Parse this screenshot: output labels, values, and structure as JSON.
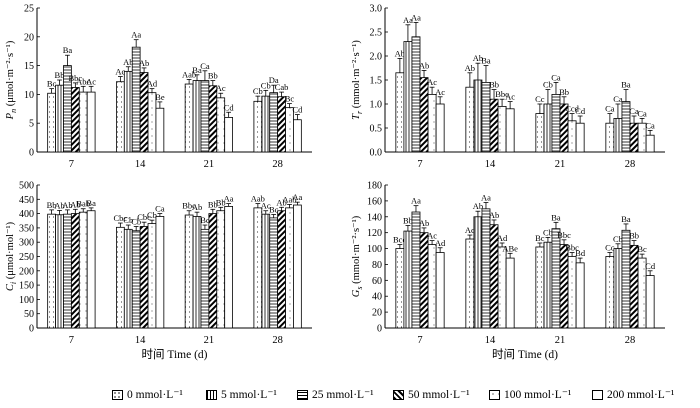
{
  "chart_data": [
    {
      "type": "bar",
      "ylabel": "Pn (μmol·m⁻²·s⁻¹)",
      "ylabel_main": "P",
      "ylabel_sub": "n",
      "ylabel_unit": " (μmol·m⁻²·s⁻¹)",
      "categories": [
        "7",
        "14",
        "21",
        "28"
      ],
      "ylim": [
        0,
        25
      ],
      "yticks": [
        0,
        5,
        10,
        15,
        20,
        25
      ],
      "series": [
        {
          "name": "0 mmol·L⁻¹",
          "values": [
            10.2,
            12.2,
            11.8,
            8.8
          ],
          "errors": [
            0.8,
            0.9,
            0.8,
            0.9
          ],
          "labels": [
            "Bc",
            "Ac",
            "Aab",
            "Cb"
          ]
        },
        {
          "name": "5 mmol·L⁻¹",
          "values": [
            11.6,
            14.0,
            12.4,
            9.7
          ],
          "errors": [
            0.9,
            0.8,
            1.0,
            1.0
          ],
          "labels": [
            "Bb",
            "Ab",
            "Ba",
            "Cb"
          ]
        },
        {
          "name": "25 mmol·L⁻¹",
          "values": [
            15.0,
            18.2,
            12.4,
            10.3
          ],
          "errors": [
            1.8,
            1.3,
            1.7,
            1.3
          ],
          "labels": [
            "Ba",
            "Aa",
            "Ca",
            "Da"
          ]
        },
        {
          "name": "50 mmol·L⁻¹",
          "values": [
            11.2,
            13.8,
            11.5,
            9.6
          ],
          "errors": [
            0.8,
            0.8,
            0.9,
            0.8
          ],
          "labels": [
            "Bbc",
            "Ab",
            "Bb",
            "Cab"
          ]
        },
        {
          "name": "100 mmol·L⁻¹",
          "values": [
            10.4,
            10.3,
            9.4,
            7.7
          ],
          "errors": [
            1.0,
            0.7,
            0.8,
            0.7
          ],
          "labels": [
            "Abc",
            "Ad",
            "Ac",
            "Bc"
          ]
        },
        {
          "name": "200 mmol·L⁻¹",
          "values": [
            10.4,
            7.6,
            6.0,
            5.6
          ],
          "errors": [
            1.0,
            1.1,
            0.9,
            0.9
          ],
          "labels": [
            "Ac",
            "Be",
            "Cd",
            "Cd"
          ]
        }
      ]
    },
    {
      "type": "bar",
      "ylabel": "Tr (mmol·m⁻²·s⁻¹)",
      "ylabel_main": "T",
      "ylabel_sub": "r",
      "ylabel_unit": " (mmol·m⁻²·s⁻¹)",
      "categories": [
        "7",
        "14",
        "21",
        "28"
      ],
      "ylim": [
        0,
        3.0
      ],
      "yticks": [
        0,
        0.5,
        1.0,
        1.5,
        2.0,
        2.5,
        3.0
      ],
      "series": [
        {
          "name": "0 mmol·L⁻¹",
          "values": [
            1.65,
            1.35,
            0.8,
            0.6
          ],
          "errors": [
            0.3,
            0.3,
            0.2,
            0.2
          ],
          "labels": [
            "Ab",
            "Ab",
            "Cc",
            "Ca"
          ]
        },
        {
          "name": "5 mmol·L⁻¹",
          "values": [
            2.3,
            1.5,
            1.0,
            0.7
          ],
          "errors": [
            0.35,
            0.35,
            0.3,
            0.3
          ],
          "labels": [
            "Aa",
            "Ab",
            "Cb",
            "Ca"
          ]
        },
        {
          "name": "25 mmol·L⁻¹",
          "values": [
            2.4,
            1.45,
            1.2,
            1.05
          ],
          "errors": [
            0.3,
            0.35,
            0.25,
            0.25
          ],
          "labels": [
            "Aa",
            "Ba",
            "Ca",
            "Ba"
          ]
        },
        {
          "name": "50 mmol·L⁻¹",
          "values": [
            1.55,
            1.1,
            1.0,
            0.6
          ],
          "errors": [
            0.15,
            0.2,
            0.15,
            0.15
          ],
          "labels": [
            "Ab",
            "Bb",
            "Bb",
            "Ca"
          ]
        },
        {
          "name": "100 mmol·L⁻¹",
          "values": [
            1.2,
            0.95,
            0.65,
            0.6
          ],
          "errors": [
            0.15,
            0.15,
            0.15,
            0.1
          ],
          "labels": [
            "Ac",
            "Bbc",
            "Ccd",
            "Ca"
          ]
        },
        {
          "name": "200 mmol·L⁻¹",
          "values": [
            1.0,
            0.9,
            0.6,
            0.35
          ],
          "errors": [
            0.15,
            0.15,
            0.15,
            0.1
          ],
          "labels": [
            "Ac",
            "Ac",
            "Cd",
            "Ca"
          ]
        }
      ]
    },
    {
      "type": "bar",
      "ylabel": "Ci (μmol·mol⁻¹)",
      "ylabel_main": "C",
      "ylabel_sub": "i",
      "ylabel_unit": " (μmol·mol⁻¹)",
      "xlabel": "时间 Time (d)",
      "categories": [
        "7",
        "14",
        "21",
        "28"
      ],
      "ylim": [
        0,
        500
      ],
      "yticks": [
        0,
        50,
        100,
        150,
        200,
        250,
        300,
        350,
        400,
        450,
        500
      ],
      "series": [
        {
          "name": "0 mmol·L⁻¹",
          "values": [
            398,
            352,
            395,
            420
          ],
          "errors": [
            15,
            15,
            15,
            15
          ],
          "labels": [
            "Bb",
            "Cbc",
            "Bbc",
            "Aab"
          ]
        },
        {
          "name": "5 mmol·L⁻¹",
          "values": [
            396,
            345,
            390,
            398
          ],
          "errors": [
            15,
            15,
            15,
            12
          ],
          "labels": [
            "Ab",
            "Cb",
            "Ab",
            "Ac"
          ]
        },
        {
          "name": "25 mmol·L⁻¹",
          "values": [
            398,
            340,
            345,
            385
          ],
          "errors": [
            15,
            15,
            15,
            12
          ],
          "labels": [
            "Ab",
            "Cb",
            "Bc",
            "Bc"
          ]
        },
        {
          "name": "50 mmol·L⁻¹",
          "values": [
            400,
            355,
            400,
            410
          ],
          "errors": [
            15,
            15,
            15,
            12
          ],
          "labels": [
            "Ab",
            "Cbc",
            "Bb",
            "Ab"
          ]
        },
        {
          "name": "100 mmol·L⁻¹",
          "values": [
            405,
            365,
            410,
            420
          ],
          "errors": [
            12,
            12,
            12,
            12
          ],
          "labels": [
            "Bab",
            "Cb",
            "Bb",
            "Aab"
          ]
        },
        {
          "name": "200 mmol·L⁻¹",
          "values": [
            410,
            390,
            425,
            430
          ],
          "errors": [
            10,
            10,
            10,
            10
          ],
          "labels": [
            "Ba",
            "Ca",
            "Aa",
            "Aa"
          ]
        }
      ]
    },
    {
      "type": "bar",
      "ylabel": "Gs (mmol·m⁻²·s⁻¹)",
      "ylabel_main": "G",
      "ylabel_sub": "s",
      "ylabel_unit": " (mmol·m⁻²·s⁻¹)",
      "xlabel": "时间 Time (d)",
      "categories": [
        "7",
        "14",
        "21",
        "28"
      ],
      "ylim": [
        0,
        180
      ],
      "yticks": [
        0,
        20,
        40,
        60,
        80,
        100,
        120,
        140,
        160,
        180
      ],
      "series": [
        {
          "name": "0 mmol·L⁻¹",
          "values": [
            100,
            112,
            102,
            90
          ],
          "errors": [
            5,
            5,
            5,
            5
          ],
          "labels": [
            "Bcd",
            "Ac",
            "Bc",
            "Cc"
          ]
        },
        {
          "name": "5 mmol·L⁻¹",
          "values": [
            122,
            140,
            108,
            100
          ],
          "errors": [
            7,
            7,
            6,
            6
          ],
          "labels": [
            "Bb",
            "Ab",
            "Cb",
            "Cb"
          ]
        },
        {
          "name": "25 mmol·L⁻¹",
          "values": [
            146,
            150,
            125,
            123
          ],
          "errors": [
            8,
            8,
            8,
            8
          ],
          "labels": [
            "Aa",
            "Aa",
            "Ba",
            "Ba"
          ]
        },
        {
          "name": "50 mmol·L⁻¹",
          "values": [
            120,
            130,
            105,
            104
          ],
          "errors": [
            6,
            6,
            6,
            6
          ],
          "labels": [
            "Ab",
            "Ab",
            "Bbc",
            "Bb"
          ]
        },
        {
          "name": "100 mmol·L⁻¹",
          "values": [
            105,
            102,
            90,
            88
          ],
          "errors": [
            5,
            5,
            5,
            5
          ],
          "labels": [
            "Ac",
            "Ad",
            "Bbc",
            "Bc"
          ]
        },
        {
          "name": "200 mmol·L⁻¹",
          "values": [
            95,
            88,
            82,
            66
          ],
          "errors": [
            6,
            6,
            6,
            6
          ],
          "labels": [
            "Ad",
            "ABe",
            "Bd",
            "Cd"
          ]
        }
      ]
    }
  ],
  "legend": {
    "items": [
      {
        "label": "0 mmol·L⁻¹",
        "pattern": "dots"
      },
      {
        "label": "5 mmol·L⁻¹",
        "pattern": "vlines"
      },
      {
        "label": "25 mmol·L⁻¹",
        "pattern": "hlines"
      },
      {
        "label": "50 mmol·L⁻¹",
        "pattern": "diag"
      },
      {
        "label": "100 mmol·L⁻¹",
        "pattern": "sparse"
      },
      {
        "label": "200 mmol·L⁻¹",
        "pattern": "plain"
      }
    ]
  }
}
